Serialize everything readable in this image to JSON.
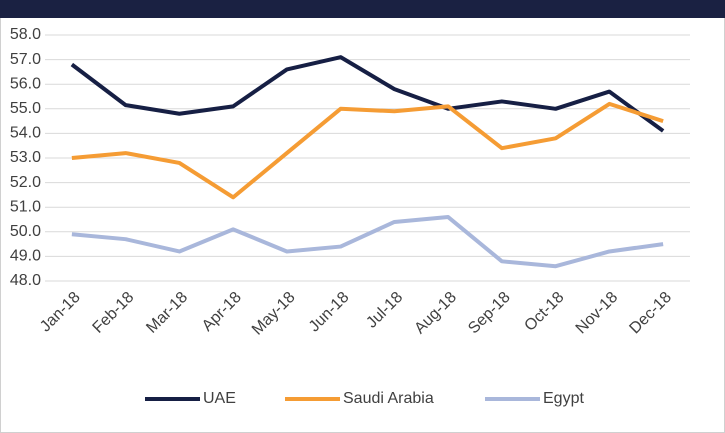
{
  "chart_data": {
    "type": "line",
    "categories": [
      "Jan-18",
      "Feb-18",
      "Mar-18",
      "Apr-18",
      "May-18",
      "Jun-18",
      "Jul-18",
      "Aug-18",
      "Sep-18",
      "Oct-18",
      "Nov-18",
      "Dec-18"
    ],
    "series": [
      {
        "name": "UAE",
        "color": "#161f44",
        "values": [
          56.8,
          55.15,
          54.8,
          55.1,
          56.6,
          57.1,
          55.8,
          55.0,
          55.3,
          55.0,
          55.7,
          54.1
        ]
      },
      {
        "name": "Saudi Arabia",
        "color": "#f59c34",
        "values": [
          53.0,
          53.2,
          52.8,
          51.4,
          53.2,
          55.0,
          54.9,
          55.1,
          53.4,
          53.8,
          55.2,
          54.5
        ]
      },
      {
        "name": "Egypt",
        "color": "#a9b7db",
        "values": [
          49.9,
          49.7,
          49.2,
          50.1,
          49.2,
          49.4,
          50.4,
          50.6,
          48.8,
          48.6,
          49.2,
          49.5
        ]
      }
    ],
    "ylim": [
      48,
      58
    ],
    "yticks": [
      {
        "value": 48,
        "label": "48.0"
      },
      {
        "value": 49,
        "label": "49.0"
      },
      {
        "value": 50,
        "label": "50.0"
      },
      {
        "value": 51,
        "label": "51.0"
      },
      {
        "value": 52,
        "label": "52.0"
      },
      {
        "value": 53,
        "label": "53.0"
      },
      {
        "value": 54,
        "label": "54.0"
      },
      {
        "value": 55,
        "label": "55.0"
      },
      {
        "value": 56,
        "label": "56.0"
      },
      {
        "value": 57,
        "label": "57.0"
      },
      {
        "value": 58,
        "label": "58.0"
      }
    ],
    "grid": true,
    "legend": "bottom"
  }
}
